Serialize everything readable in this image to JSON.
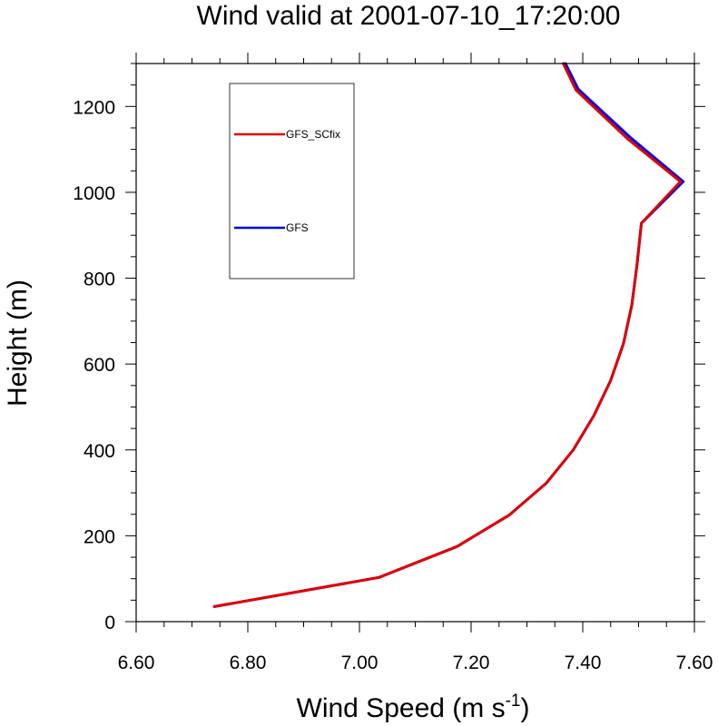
{
  "chart_data": {
    "type": "line",
    "title": "Wind valid at 2001-07-10_17:20:00",
    "xlabel": {
      "text": "Wind Speed (m s",
      "sup": "-1",
      "suffix": ")"
    },
    "ylabel": "Height (m)",
    "xlim": [
      6.6,
      7.6
    ],
    "ylim": [
      0,
      1300
    ],
    "x_ticks": [
      6.6,
      6.8,
      7.0,
      7.2,
      7.4,
      7.6
    ],
    "x_tick_labels": [
      "6.60",
      "6.80",
      "7.00",
      "7.20",
      "7.40",
      "7.60"
    ],
    "y_ticks": [
      0,
      200,
      400,
      600,
      800,
      1000,
      1200
    ],
    "y_tick_labels": [
      "0",
      "200",
      "400",
      "600",
      "800",
      "1000",
      "1200"
    ],
    "grid": false,
    "legend_placement": "top-left",
    "series": [
      {
        "name": "GFS_SCfix",
        "color": "#e00000",
        "points": [
          [
            6.74,
            35
          ],
          [
            7.035,
            103
          ],
          [
            7.175,
            175
          ],
          [
            7.268,
            248
          ],
          [
            7.335,
            323
          ],
          [
            7.383,
            400
          ],
          [
            7.42,
            480
          ],
          [
            7.45,
            562
          ],
          [
            7.473,
            648
          ],
          [
            7.488,
            738
          ],
          [
            7.497,
            830
          ],
          [
            7.505,
            928
          ],
          [
            7.575,
            1025
          ],
          [
            7.48,
            1125
          ],
          [
            7.388,
            1238
          ],
          [
            7.365,
            1300
          ]
        ]
      },
      {
        "name": "GFS",
        "color": "#0000e0",
        "points": [
          [
            6.74,
            35
          ],
          [
            7.035,
            103
          ],
          [
            7.175,
            175
          ],
          [
            7.268,
            248
          ],
          [
            7.335,
            323
          ],
          [
            7.383,
            400
          ],
          [
            7.42,
            480
          ],
          [
            7.45,
            562
          ],
          [
            7.473,
            648
          ],
          [
            7.488,
            738
          ],
          [
            7.497,
            830
          ],
          [
            7.505,
            928
          ],
          [
            7.58,
            1025
          ],
          [
            7.485,
            1128
          ],
          [
            7.392,
            1240
          ],
          [
            7.369,
            1300
          ]
        ]
      }
    ]
  }
}
